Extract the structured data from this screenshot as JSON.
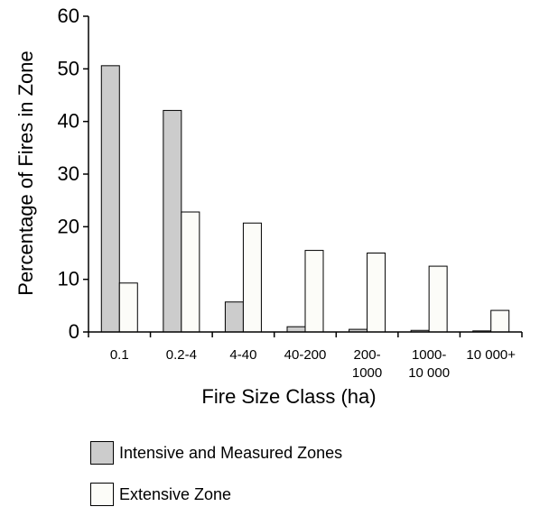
{
  "chart_data": {
    "type": "bar",
    "title": "",
    "xlabel": "Fire Size Class (ha)",
    "ylabel": "Percentage of Fires in Zone",
    "ylim": [
      0,
      60
    ],
    "yticks": [
      0,
      10,
      20,
      30,
      40,
      50,
      60
    ],
    "grid": false,
    "legend_position": "bottom-left",
    "categories": [
      [
        "0.1"
      ],
      [
        "0.2-4"
      ],
      [
        "4-40"
      ],
      [
        "40-200"
      ],
      [
        "200-",
        "1000"
      ],
      [
        "1000-",
        "10 000"
      ],
      [
        "10 000+"
      ]
    ],
    "series": [
      {
        "name": "Intensive and Measured Zones",
        "color": "#cccccc",
        "values": [
          50.6,
          42.1,
          5.7,
          1.0,
          0.5,
          0.3,
          0.2
        ]
      },
      {
        "name": "Extensive Zone",
        "color": "#fcfcf8",
        "values": [
          9.3,
          22.8,
          20.7,
          15.5,
          15.0,
          12.5,
          4.1
        ]
      }
    ]
  }
}
